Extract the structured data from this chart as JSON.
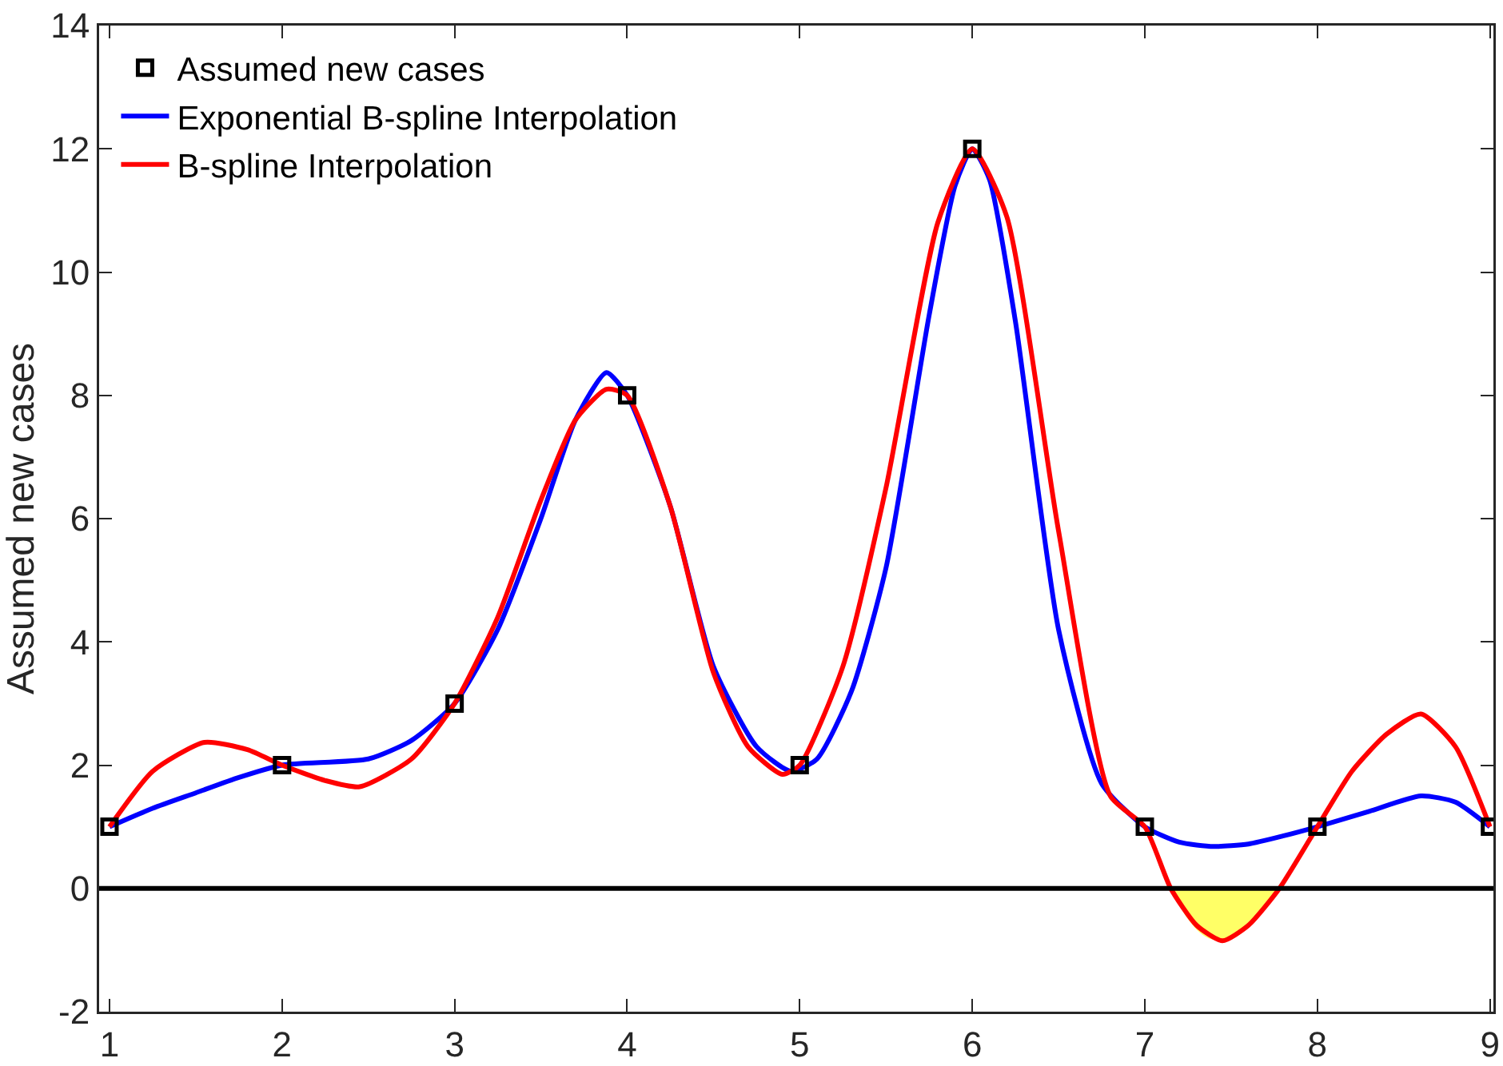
{
  "chart_data": {
    "type": "line",
    "ylabel": "Assumed new cases",
    "xlim": [
      0.94,
      9.02
    ],
    "ylim": [
      -2,
      14
    ],
    "xticks": [
      1,
      2,
      3,
      4,
      5,
      6,
      7,
      8,
      9
    ],
    "yticks": [
      -2,
      0,
      2,
      4,
      6,
      8,
      10,
      12,
      14
    ],
    "grid": false,
    "legend": "top left",
    "ref_lines": [
      {
        "axis": "y",
        "value": 0,
        "color": "#000000"
      }
    ],
    "series": [
      {
        "type": "area",
        "color": "#ffff66",
        "x": [
          7.15,
          7.25,
          7.35,
          7.45,
          7.55,
          7.65,
          7.78
        ],
        "values": [
          0,
          -0.5,
          -0.78,
          -0.85,
          -0.75,
          -0.45,
          0
        ]
      },
      {
        "type": "scatter",
        "marker": "square",
        "name": "Assumed new cases",
        "color": "#000000",
        "x": [
          1,
          2,
          3,
          4,
          5,
          6,
          7,
          8,
          9
        ],
        "values": [
          1,
          2,
          3,
          8,
          2,
          12,
          1,
          1,
          1
        ]
      },
      {
        "marker": "none",
        "name": "Exponential B-spline Interpolation",
        "color": "#0000ff",
        "x": [
          1,
          1.25,
          1.5,
          1.75,
          2,
          2.5,
          2.75,
          3,
          3.25,
          3.5,
          3.7,
          3.88,
          4,
          4.25,
          4.5,
          4.75,
          4.95,
          5.1,
          5.3,
          5.5,
          5.75,
          5.9,
          6,
          6.1,
          6.25,
          6.5,
          6.75,
          7,
          7.2,
          7.4,
          7.6,
          7.8,
          8,
          8.3,
          8.6,
          8.8,
          9
        ],
        "values": [
          1,
          1.3,
          1.55,
          1.8,
          2,
          2.1,
          2.4,
          3,
          4.2,
          6,
          7.6,
          8.37,
          8,
          6.2,
          3.6,
          2.3,
          1.9,
          2.1,
          3.2,
          5.2,
          9.3,
          11.4,
          12,
          11.5,
          9.2,
          4.2,
          1.7,
          1,
          0.75,
          0.68,
          0.72,
          0.85,
          1,
          1.25,
          1.5,
          1.4,
          1
        ]
      },
      {
        "marker": "none",
        "name": "B-spline Interpolation",
        "color": "#ff0000",
        "x": [
          1,
          1.25,
          1.55,
          1.8,
          2,
          2.25,
          2.45,
          2.75,
          3,
          3.25,
          3.5,
          3.7,
          3.88,
          4,
          4.25,
          4.5,
          4.7,
          4.9,
          5,
          5.25,
          5.5,
          5.8,
          6,
          6.2,
          6.5,
          6.8,
          7,
          7.15,
          7.3,
          7.45,
          7.6,
          7.78,
          8,
          8.2,
          8.4,
          8.6,
          8.8,
          9
        ],
        "values": [
          1,
          1.9,
          2.37,
          2.25,
          2,
          1.75,
          1.65,
          2.1,
          3,
          4.4,
          6.3,
          7.6,
          8.1,
          8,
          6.2,
          3.5,
          2.3,
          1.85,
          2,
          3.6,
          6.5,
          10.8,
          12,
          10.9,
          5.8,
          1.5,
          1,
          0,
          -0.6,
          -0.85,
          -0.6,
          0,
          1,
          1.9,
          2.5,
          2.83,
          2.3,
          1
        ]
      }
    ]
  }
}
